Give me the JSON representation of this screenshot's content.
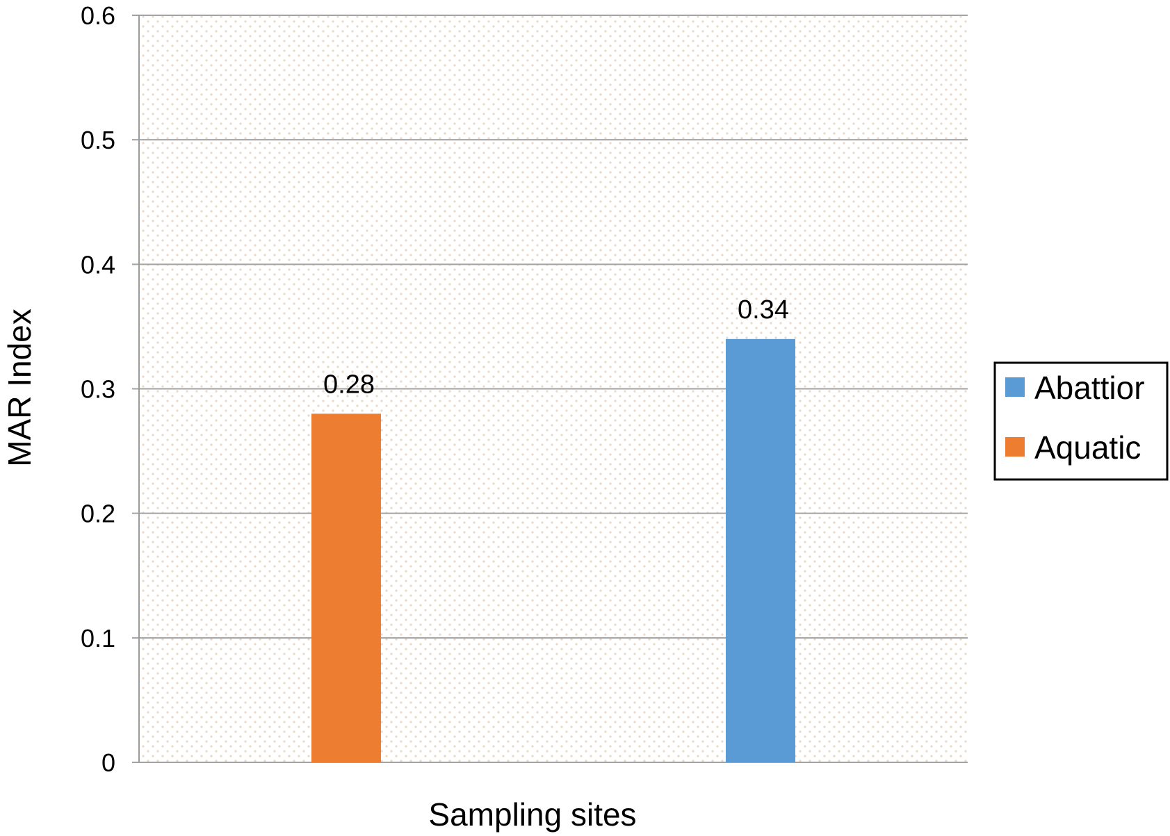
{
  "chart_data": {
    "type": "bar",
    "xlabel": "Sampling sites",
    "ylabel": "MAR Index",
    "ylim": [
      0,
      0.6
    ],
    "yticks": [
      "0",
      "0.1",
      "0.2",
      "0.3",
      "0.4",
      "0.5",
      "0.6"
    ],
    "grid": true,
    "legend_position": "right",
    "series": [
      {
        "name": "Aquatic",
        "value": 0.28,
        "label": "0.28",
        "color": "#ED7D31"
      },
      {
        "name": "Abattior",
        "value": 0.34,
        "label": "0.34",
        "color": "#5B9BD5"
      }
    ],
    "legend": [
      {
        "name": "Abattior",
        "color": "#5B9BD5"
      },
      {
        "name": "Aquatic",
        "color": "#ED7D31"
      }
    ]
  }
}
